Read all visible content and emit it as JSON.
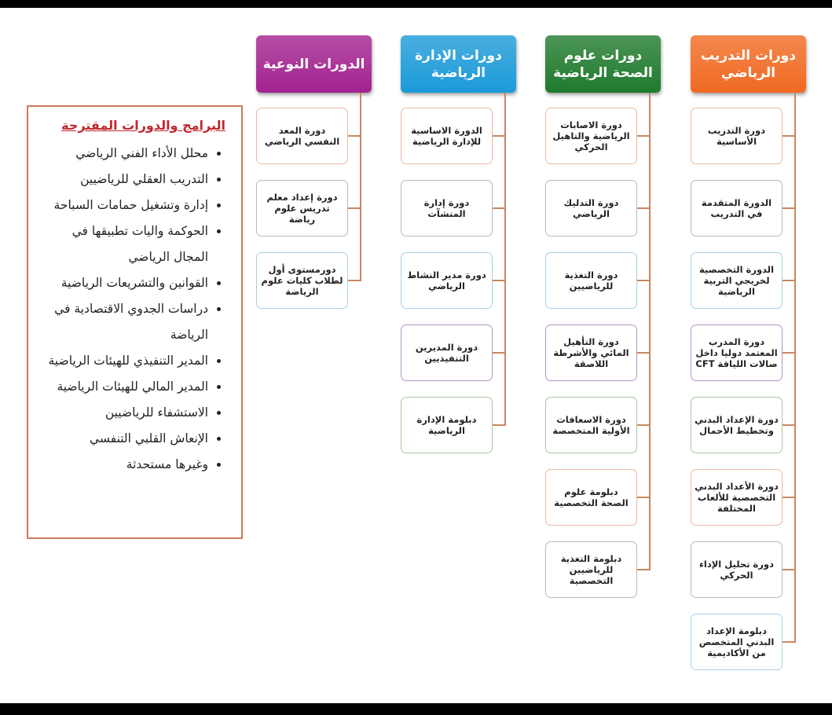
{
  "columns": [
    {
      "title": "دورات التدريب الرياضي",
      "color": "#f06a22",
      "items": [
        "دورة التدريب الأساسية",
        "الدورة المتقدمة في التدريب",
        "الدورة التخصصية لخريجي التربية الرياضية",
        "دورة المدرب المعتمد دوليا داخل صالات اللياقة CFT",
        "دورة الإعداد البدني وتخطيط الأحمال",
        "دورة الأعداد البدني التخصصية للألعاب المختلفة",
        "دورة تحليل الإداء الحركي",
        "دبلومة الإعداد البدني المتخصص من الأكاديمية"
      ]
    },
    {
      "title": "دورات علوم الصحة الرياضية",
      "color": "#1f7a2c",
      "items": [
        "دورة الاصابات الرياضية والتاهيل الحركي",
        "دورة التدليك الرياضي",
        "دورة التغذية للرياضيين",
        "دورة التأهيل المائي والأشرطة اللاصقة",
        "دورة الاسعافات الأولية المتخصصة",
        "دبلومة علوم الصحة التخصصية",
        "دبلومة التغذية للرياضيين التخصصية"
      ]
    },
    {
      "title": "دورات الإدارة الرياضية",
      "color": "#1b9ad8",
      "items": [
        "الدورة الاساسية للإدارة الرياضية",
        "دورة إدارة المنشآت",
        "دورة مدير النشاط الرياضي",
        "دورة المديرين التنفيذيين",
        "دبلومة الإدارة الرياضية"
      ]
    },
    {
      "title": "الدورات النوعية",
      "color": "#a3228f",
      "items": [
        "دورة المعد النفسي الرياضي",
        "دورة إعداد معلم تدريس علوم رياضة",
        "دورمستوى أول لطلاب كليات علوم الرياضة"
      ]
    }
  ],
  "panel": {
    "title": "البرامج والدورات المقترحة",
    "items": [
      "محلل الأداء الفني الرياضي",
      "التدريب العقلي للرياضيين",
      "إدارة وتشغيل حمامات السباحة",
      "الحوكمة واليات تطبيقها في المجال الرياضي",
      "القوانين والتشريعات الرياضية",
      "دراسات الجدوي الاقتصادية في الرياضة",
      "المدير التنفيذي للهيئات الرياضية",
      "المدير المالي للهيئات الرياضية",
      "الاستشفاء للرياضيين",
      "الإنعاش القلبي التنفسي",
      "وغيرها مستحدثة"
    ]
  },
  "box_border_colors": [
    "#e9b9a3",
    "#b9b9b9",
    "#a9cfe3",
    "#b493c4",
    "#a8c9a0"
  ]
}
